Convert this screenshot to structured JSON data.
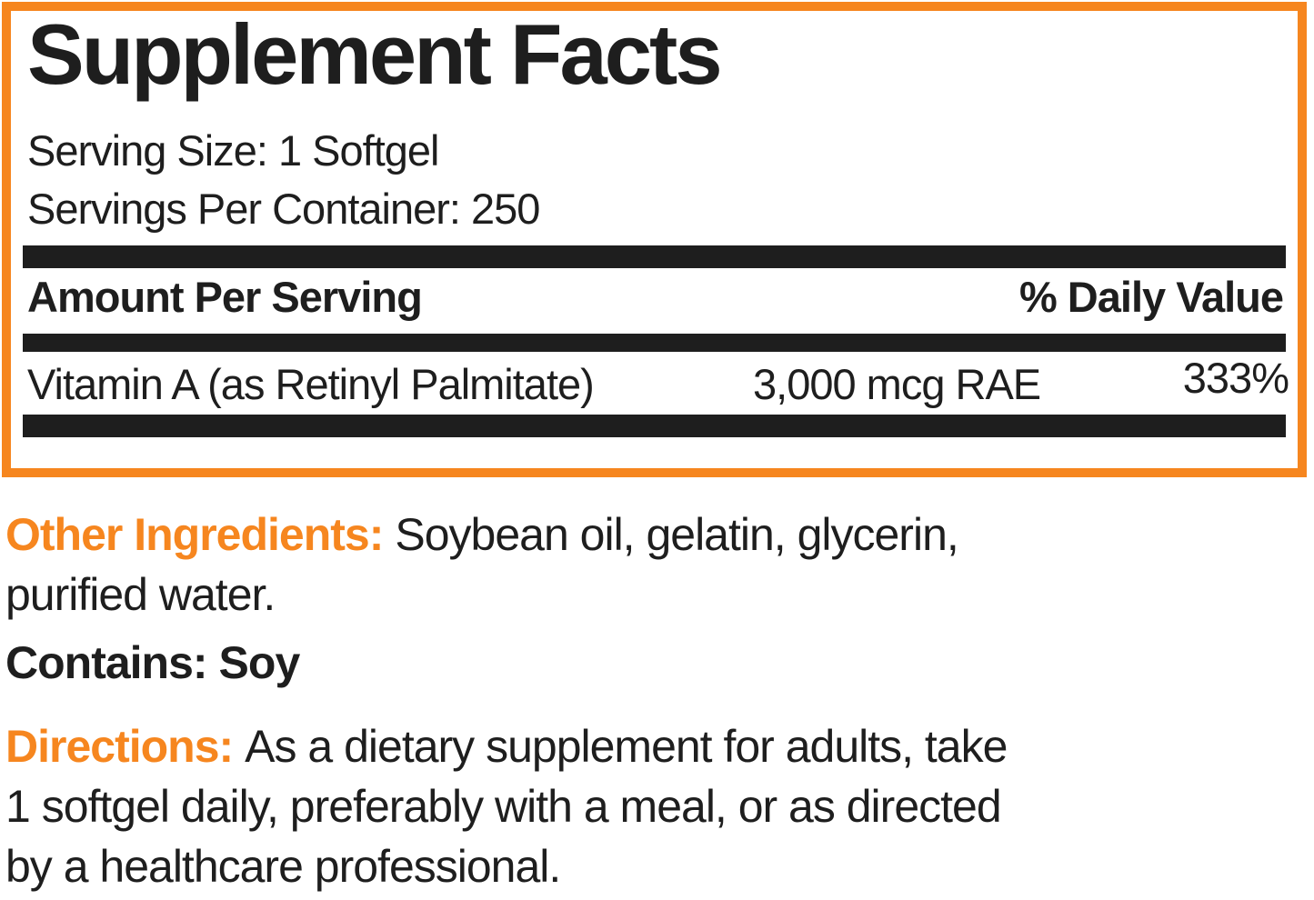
{
  "colors": {
    "accent_orange": "#F6861F",
    "ink_black": "#1E1E1E",
    "background": "#FFFFFF"
  },
  "supplement_facts": {
    "title": "Supplement Facts",
    "serving_size": "Serving Size: 1 Softgel",
    "servings_per_container": "Servings Per Container: 250",
    "columns": {
      "amount": "Amount Per Serving",
      "daily_value": "% Daily Value"
    },
    "nutrients": [
      {
        "name": "Vitamin A (as Retinyl Palmitate)",
        "amount": "3,000 mcg RAE",
        "daily_value": "333%"
      }
    ]
  },
  "other_ingredients": {
    "label": "Other Ingredients:",
    "lines": [
      "Soybean oil, gelatin, glycerin,",
      "purified water."
    ]
  },
  "contains": {
    "label": "Contains:",
    "value": "Soy"
  },
  "directions": {
    "label": "Directions:",
    "lines": [
      "As a dietary supplement for adults, take",
      "1 softgel daily, preferably with a meal, or as directed",
      "by a healthcare professional."
    ]
  }
}
